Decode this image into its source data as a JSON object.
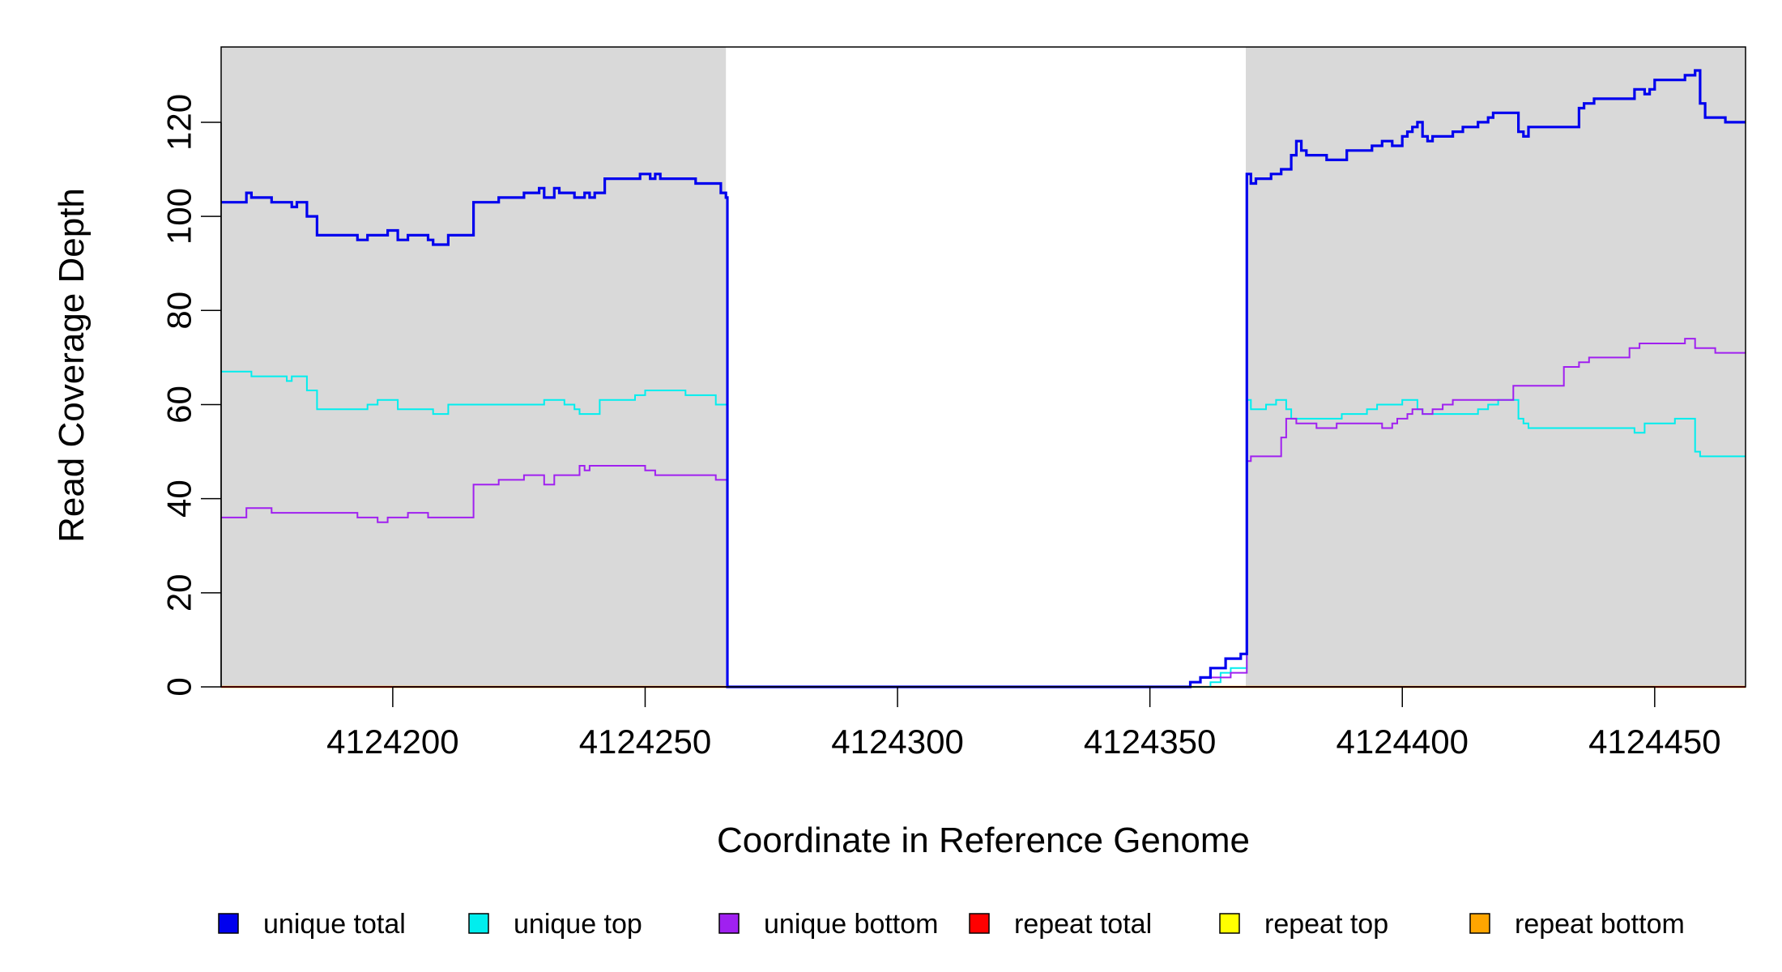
{
  "chart_data": {
    "type": "line",
    "xlabel": "Coordinate in Reference Genome",
    "ylabel": "Read Coverage Depth",
    "xlim": [
      4124166,
      4124468
    ],
    "ylim": [
      0,
      136
    ],
    "x_ticks": [
      4124200,
      4124250,
      4124300,
      4124350,
      4124400,
      4124450
    ],
    "y_ticks": [
      0,
      20,
      40,
      60,
      80,
      100,
      120
    ],
    "shaded_regions": [
      {
        "x_start": 4124166,
        "x_end": 4124266,
        "color": "#d9d9d9"
      },
      {
        "x_start": 4124369,
        "x_end": 4124468,
        "color": "#d9d9d9"
      }
    ],
    "series": [
      {
        "name": "unique total",
        "color": "#0000ee",
        "width": 3.2,
        "points": [
          [
            4124166,
            103
          ],
          [
            4124171,
            105
          ],
          [
            4124172,
            104
          ],
          [
            4124176,
            103
          ],
          [
            4124180,
            102
          ],
          [
            4124181,
            103
          ],
          [
            4124183,
            100
          ],
          [
            4124185,
            96
          ],
          [
            4124193,
            95
          ],
          [
            4124195,
            96
          ],
          [
            4124199,
            97
          ],
          [
            4124201,
            95
          ],
          [
            4124203,
            96
          ],
          [
            4124207,
            95
          ],
          [
            4124208,
            94
          ],
          [
            4124211,
            96
          ],
          [
            4124216,
            103
          ],
          [
            4124221,
            104
          ],
          [
            4124226,
            105
          ],
          [
            4124229,
            106
          ],
          [
            4124230,
            104
          ],
          [
            4124232,
            106
          ],
          [
            4124233,
            105
          ],
          [
            4124236,
            104
          ],
          [
            4124238,
            105
          ],
          [
            4124239,
            104
          ],
          [
            4124240,
            105
          ],
          [
            4124242,
            108
          ],
          [
            4124249,
            109
          ],
          [
            4124251,
            108
          ],
          [
            4124252,
            109
          ],
          [
            4124253,
            108
          ],
          [
            4124260,
            107
          ],
          [
            4124265,
            105
          ],
          [
            4124266,
            104
          ],
          [
            4124266.3,
            0
          ],
          [
            4124357,
            0
          ],
          [
            4124358,
            1
          ],
          [
            4124360,
            2
          ],
          [
            4124362,
            4
          ],
          [
            4124365,
            6
          ],
          [
            4124368,
            7
          ],
          [
            4124369,
            7
          ],
          [
            4124369.2,
            109
          ],
          [
            4124370,
            107
          ],
          [
            4124371,
            108
          ],
          [
            4124374,
            109
          ],
          [
            4124376,
            110
          ],
          [
            4124378,
            113
          ],
          [
            4124379,
            116
          ],
          [
            4124380,
            114
          ],
          [
            4124381,
            113
          ],
          [
            4124385,
            112
          ],
          [
            4124389,
            114
          ],
          [
            4124394,
            115
          ],
          [
            4124396,
            116
          ],
          [
            4124398,
            115
          ],
          [
            4124400,
            117
          ],
          [
            4124401,
            118
          ],
          [
            4124402,
            119
          ],
          [
            4124403,
            120
          ],
          [
            4124404,
            117
          ],
          [
            4124405,
            116
          ],
          [
            4124406,
            117
          ],
          [
            4124410,
            118
          ],
          [
            4124412,
            119
          ],
          [
            4124415,
            120
          ],
          [
            4124417,
            121
          ],
          [
            4124418,
            122
          ],
          [
            4124423,
            118
          ],
          [
            4124424,
            117
          ],
          [
            4124425,
            119
          ],
          [
            4124435,
            123
          ],
          [
            4124436,
            124
          ],
          [
            4124438,
            125
          ],
          [
            4124446,
            127
          ],
          [
            4124448,
            126
          ],
          [
            4124449,
            127
          ],
          [
            4124450,
            129
          ],
          [
            4124456,
            130
          ],
          [
            4124458,
            131
          ],
          [
            4124459,
            124
          ],
          [
            4124460,
            121
          ],
          [
            4124464,
            120
          ],
          [
            4124468,
            120
          ]
        ]
      },
      {
        "name": "unique top",
        "color": "#00eeee",
        "width": 2,
        "points": [
          [
            4124166,
            67
          ],
          [
            4124172,
            66
          ],
          [
            4124179,
            65
          ],
          [
            4124180,
            66
          ],
          [
            4124183,
            63
          ],
          [
            4124185,
            59
          ],
          [
            4124195,
            60
          ],
          [
            4124197,
            61
          ],
          [
            4124201,
            59
          ],
          [
            4124208,
            58
          ],
          [
            4124211,
            60
          ],
          [
            4124230,
            61
          ],
          [
            4124234,
            60
          ],
          [
            4124236,
            59
          ],
          [
            4124237,
            58
          ],
          [
            4124241,
            61
          ],
          [
            4124248,
            62
          ],
          [
            4124250,
            63
          ],
          [
            4124258,
            62
          ],
          [
            4124264,
            60
          ],
          [
            4124266,
            60
          ],
          [
            4124266.3,
            0
          ],
          [
            4124359,
            0
          ],
          [
            4124362,
            1
          ],
          [
            4124364,
            3
          ],
          [
            4124366,
            4
          ],
          [
            4124369,
            4
          ],
          [
            4124369.2,
            61
          ],
          [
            4124370,
            59
          ],
          [
            4124373,
            60
          ],
          [
            4124375,
            61
          ],
          [
            4124377,
            59
          ],
          [
            4124378,
            57
          ],
          [
            4124388,
            58
          ],
          [
            4124393,
            59
          ],
          [
            4124395,
            60
          ],
          [
            4124400,
            61
          ],
          [
            4124403,
            59
          ],
          [
            4124404,
            58
          ],
          [
            4124415,
            59
          ],
          [
            4124417,
            60
          ],
          [
            4124419,
            61
          ],
          [
            4124423,
            57
          ],
          [
            4124424,
            56
          ],
          [
            4124425,
            55
          ],
          [
            4124446,
            54
          ],
          [
            4124448,
            56
          ],
          [
            4124454,
            57
          ],
          [
            4124458,
            50
          ],
          [
            4124459,
            49
          ],
          [
            4124468,
            49
          ]
        ]
      },
      {
        "name": "unique bottom",
        "color": "#a020f0",
        "width": 2,
        "points": [
          [
            4124166,
            36
          ],
          [
            4124171,
            38
          ],
          [
            4124176,
            37
          ],
          [
            4124193,
            36
          ],
          [
            4124197,
            35
          ],
          [
            4124199,
            36
          ],
          [
            4124203,
            37
          ],
          [
            4124207,
            36
          ],
          [
            4124216,
            43
          ],
          [
            4124221,
            44
          ],
          [
            4124226,
            45
          ],
          [
            4124230,
            43
          ],
          [
            4124232,
            45
          ],
          [
            4124237,
            47
          ],
          [
            4124238,
            46
          ],
          [
            4124239,
            47
          ],
          [
            4124250,
            46
          ],
          [
            4124252,
            45
          ],
          [
            4124264,
            44
          ],
          [
            4124266,
            44
          ],
          [
            4124266.3,
            0
          ],
          [
            4124357,
            0
          ],
          [
            4124358,
            1
          ],
          [
            4124360,
            2
          ],
          [
            4124366,
            3
          ],
          [
            4124369,
            3
          ],
          [
            4124369.2,
            48
          ],
          [
            4124370,
            49
          ],
          [
            4124376,
            53
          ],
          [
            4124377,
            57
          ],
          [
            4124379,
            56
          ],
          [
            4124383,
            55
          ],
          [
            4124387,
            56
          ],
          [
            4124396,
            55
          ],
          [
            4124398,
            56
          ],
          [
            4124399,
            57
          ],
          [
            4124401,
            58
          ],
          [
            4124402,
            59
          ],
          [
            4124404,
            58
          ],
          [
            4124406,
            59
          ],
          [
            4124408,
            60
          ],
          [
            4124410,
            61
          ],
          [
            4124422,
            64
          ],
          [
            4124432,
            68
          ],
          [
            4124435,
            69
          ],
          [
            4124437,
            70
          ],
          [
            4124445,
            72
          ],
          [
            4124447,
            73
          ],
          [
            4124456,
            74
          ],
          [
            4124458,
            72
          ],
          [
            4124462,
            71
          ],
          [
            4124468,
            71
          ]
        ]
      },
      {
        "name": "repeat total",
        "color": "#ff0000",
        "width": 2,
        "points": [
          [
            4124166,
            0
          ],
          [
            4124468,
            0
          ]
        ]
      },
      {
        "name": "repeat top",
        "color": "#ffff00",
        "width": 2,
        "points": [
          [
            4124166,
            0
          ],
          [
            4124468,
            0
          ]
        ]
      },
      {
        "name": "repeat bottom",
        "color": "#ffa500",
        "width": 2.4,
        "points": [
          [
            4124166,
            0
          ],
          [
            4124468,
            0
          ]
        ]
      }
    ]
  }
}
